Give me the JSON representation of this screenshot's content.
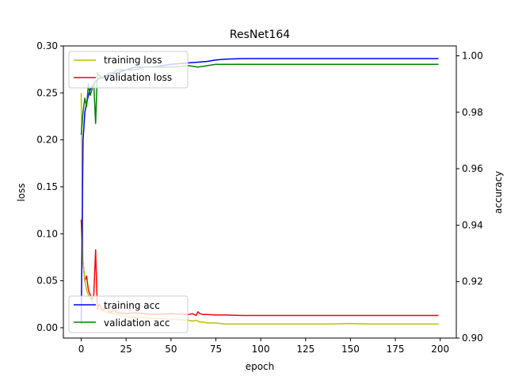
{
  "chart_data": {
    "type": "line",
    "title": "ResNet164",
    "xlabel": "epoch",
    "ylabel": "loss",
    "y2label": "accuracy",
    "xlim": [
      -9.95,
      208.95
    ],
    "ylim": [
      -0.011,
      0.3
    ],
    "y2lim": [
      0.9,
      1.0035
    ],
    "xticks": [
      0,
      25,
      50,
      75,
      100,
      125,
      150,
      175,
      200
    ],
    "yticks": [
      0.0,
      0.05,
      0.1,
      0.15,
      0.2,
      0.25,
      0.3
    ],
    "ytick_labels": [
      "0.00",
      "0.05",
      "0.10",
      "0.15",
      "0.20",
      "0.25",
      "0.30"
    ],
    "y2ticks": [
      0.9,
      0.92,
      0.94,
      0.96,
      0.98,
      1.0
    ],
    "y2tick_labels": [
      "0.90",
      "0.92",
      "0.94",
      "0.96",
      "0.98",
      "1.00"
    ],
    "grid": false,
    "legend_loss_placement": "upper-left",
    "legend_acc_placement": "lower-left",
    "series": [
      {
        "name": "training loss",
        "axis": "left",
        "color": "#bfbf00",
        "x": [
          0,
          1,
          2,
          3,
          4,
          5,
          6,
          7,
          8,
          9,
          10,
          12,
          15,
          20,
          25,
          30,
          40,
          50,
          60,
          62,
          64,
          66,
          68,
          70,
          75,
          80,
          90,
          100,
          110,
          120,
          130,
          140,
          150,
          160,
          170,
          180,
          190,
          199
        ],
        "values": [
          0.25,
          0.07,
          0.05,
          0.04,
          0.035,
          0.03,
          0.028,
          0.025,
          0.024,
          0.022,
          0.02,
          0.018,
          0.016,
          0.014,
          0.012,
          0.011,
          0.01,
          0.009,
          0.008,
          0.007,
          0.008,
          0.006,
          0.006,
          0.005,
          0.005,
          0.004,
          0.004,
          0.004,
          0.004,
          0.004,
          0.004,
          0.004,
          0.0045,
          0.004,
          0.004,
          0.004,
          0.004,
          0.004
        ]
      },
      {
        "name": "validation loss",
        "axis": "left",
        "color": "#ff0000",
        "x": [
          0,
          1,
          2,
          3,
          4,
          5,
          6,
          7,
          8,
          9,
          10,
          12,
          14,
          16,
          18,
          20,
          25,
          30,
          35,
          40,
          50,
          60,
          62,
          64,
          65,
          66,
          68,
          70,
          75,
          80,
          90,
          100,
          120,
          140,
          160,
          180,
          199
        ],
        "values": [
          0.115,
          0.07,
          0.05,
          0.055,
          0.04,
          0.035,
          0.03,
          0.035,
          0.083,
          0.02,
          0.025,
          0.018,
          0.022,
          0.015,
          0.02,
          0.016,
          0.015,
          0.016,
          0.015,
          0.014,
          0.015,
          0.014,
          0.015,
          0.013,
          0.017,
          0.015,
          0.014,
          0.014,
          0.0135,
          0.0135,
          0.013,
          0.013,
          0.013,
          0.013,
          0.013,
          0.013,
          0.013
        ]
      },
      {
        "name": "training acc",
        "axis": "right",
        "color": "#0000ff",
        "x": [
          0,
          1,
          2,
          3,
          4,
          5,
          6,
          7,
          8,
          10,
          15,
          20,
          25,
          30,
          40,
          50,
          60,
          70,
          75,
          80,
          90,
          100,
          110,
          120,
          130,
          140,
          150,
          160,
          170,
          180,
          190,
          199
        ],
        "values": [
          0.905,
          0.97,
          0.98,
          0.983,
          0.986,
          0.988,
          0.989,
          0.99,
          0.991,
          0.992,
          0.993,
          0.994,
          0.995,
          0.996,
          0.996,
          0.997,
          0.9975,
          0.998,
          0.9985,
          0.9988,
          0.999,
          0.999,
          0.999,
          0.999,
          0.999,
          0.999,
          0.999,
          0.999,
          0.999,
          0.999,
          0.999,
          0.999
        ]
      },
      {
        "name": "validation acc",
        "axis": "right",
        "color": "#008000",
        "x": [
          0,
          1,
          2,
          3,
          4,
          5,
          6,
          7,
          8,
          9,
          10,
          12,
          14,
          16,
          18,
          20,
          25,
          30,
          35,
          40,
          50,
          60,
          65,
          70,
          75,
          80,
          90,
          100,
          120,
          140,
          160,
          180,
          199
        ],
        "values": [
          0.972,
          0.98,
          0.985,
          0.982,
          0.99,
          0.986,
          0.988,
          0.99,
          0.976,
          0.994,
          0.993,
          0.992,
          0.993,
          0.994,
          0.994,
          0.995,
          0.995,
          0.995,
          0.996,
          0.996,
          0.996,
          0.9965,
          0.996,
          0.9965,
          0.997,
          0.997,
          0.997,
          0.997,
          0.997,
          0.997,
          0.997,
          0.997,
          0.997
        ]
      }
    ]
  }
}
